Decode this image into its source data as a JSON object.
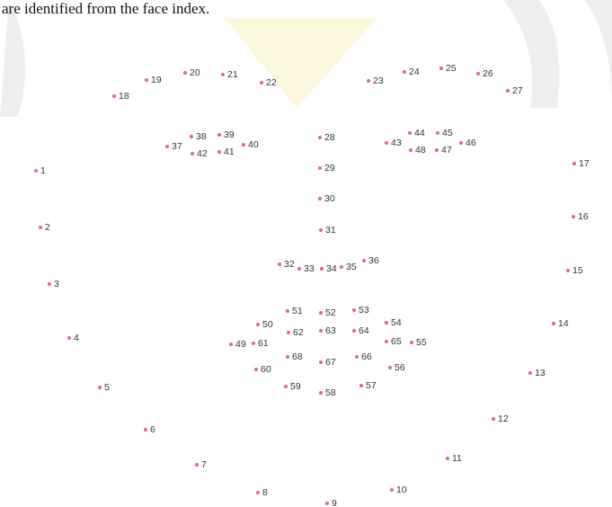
{
  "caption": "are identified from the face index.",
  "landmarks": [
    "1",
    "2",
    "3",
    "4",
    "5",
    "6",
    "7",
    "8",
    "9",
    "10",
    "11",
    "12",
    "13",
    "14",
    "15",
    "16",
    "17",
    "18",
    "19",
    "20",
    "21",
    "22",
    "23",
    "24",
    "25",
    "26",
    "27",
    "28",
    "29",
    "30",
    "31",
    "32",
    "33",
    "34",
    "35",
    "36",
    "37",
    "38",
    "39",
    "40",
    "41",
    "42",
    "43",
    "44",
    "45",
    "46",
    "47",
    "48",
    "49",
    "50",
    "51",
    "52",
    "53",
    "54",
    "55",
    "56",
    "57",
    "58",
    "59",
    "60",
    "61",
    "62",
    "63",
    "64",
    "65",
    "66",
    "67",
    "68"
  ]
}
